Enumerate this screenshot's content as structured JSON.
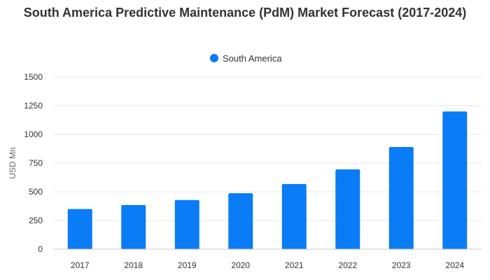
{
  "chart_data": {
    "type": "bar",
    "title": "South America Predictive Maintenance (PdM) Market Forecast (2017-2024)",
    "xlabel": "",
    "ylabel": "USD Mn",
    "categories": [
      "2017",
      "2018",
      "2019",
      "2020",
      "2021",
      "2022",
      "2023",
      "2024"
    ],
    "series": [
      {
        "name": "South America",
        "color": "#0a7cf5",
        "values": [
          350,
          385,
          428,
          488,
          568,
          695,
          890,
          1200
        ]
      }
    ],
    "ylim": [
      0,
      1500
    ],
    "yticks": [
      0,
      250,
      500,
      750,
      1000,
      1250,
      1500
    ],
    "grid": true,
    "legend_position": "top-center"
  }
}
